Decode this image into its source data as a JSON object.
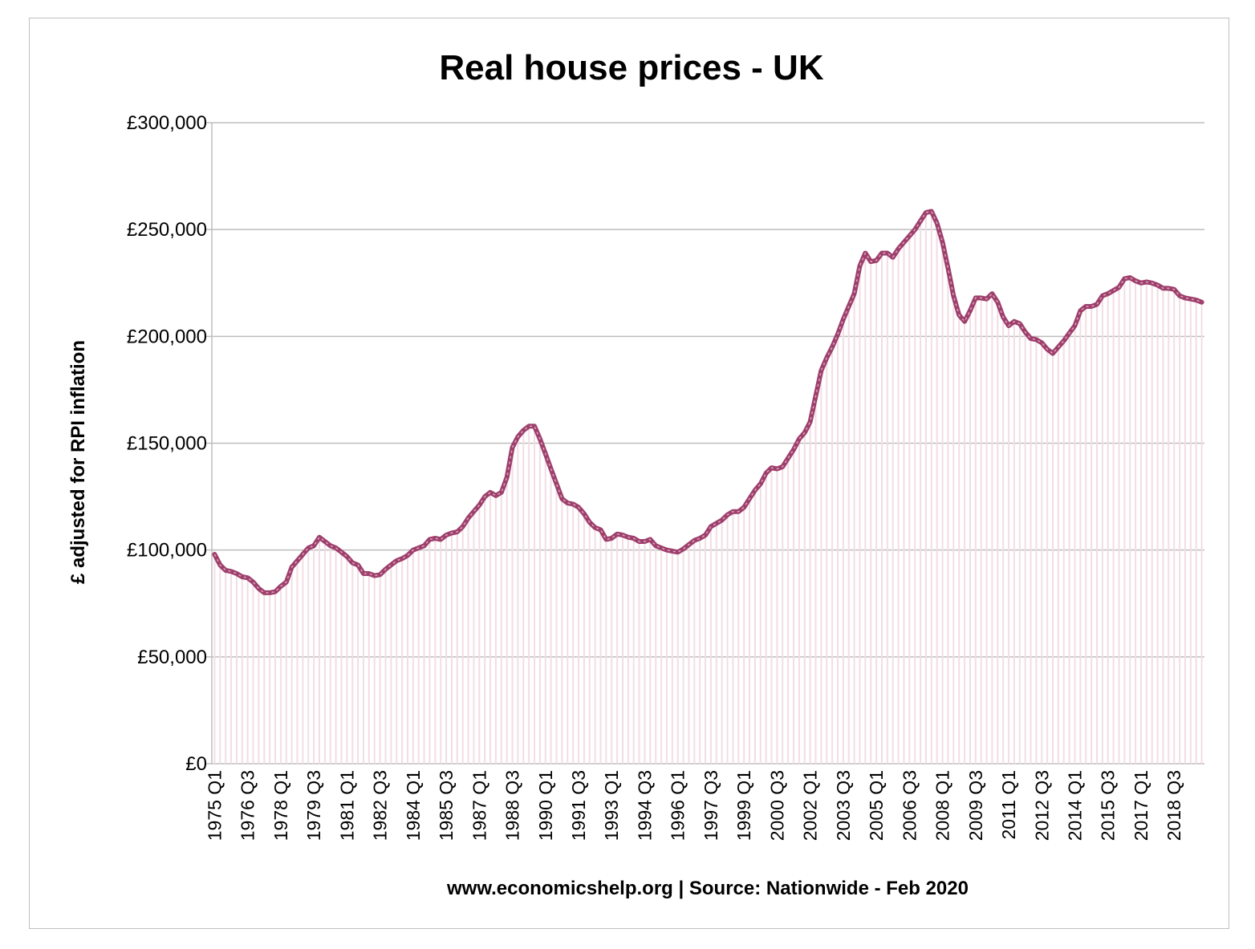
{
  "chart_data": {
    "type": "line",
    "title": "Real house prices - UK",
    "xlabel": "www.economicshelp.org | Source: Nationwide - Feb 2020",
    "ylabel": "£ adjusted for RPI inflation",
    "ylim": [
      0,
      300000
    ],
    "yticks": [
      "£0",
      "£50,000",
      "£100,000",
      "£150,000",
      "£200,000",
      "£250,000",
      "£300,000"
    ],
    "x_range": [
      "1975 Q1",
      "2019 Q4"
    ],
    "xtick_labels": [
      "1975 Q1",
      "1976 Q3",
      "1978 Q1",
      "1979 Q3",
      "1981 Q1",
      "1982 Q3",
      "1984 Q1",
      "1985 Q3",
      "1987 Q1",
      "1988 Q3",
      "1990 Q1",
      "1991 Q3",
      "1993 Q1",
      "1994 Q3",
      "1996 Q1",
      "1997 Q3",
      "1999 Q1",
      "2000 Q3",
      "2002 Q1",
      "2003 Q3",
      "2005 Q1",
      "2006 Q3",
      "2008 Q1",
      "2009 Q3",
      "2011 Q1",
      "2012 Q3",
      "2014 Q1",
      "2015 Q3",
      "2017 Q1",
      "2018 Q3"
    ],
    "grid": true,
    "legend": "none",
    "colors": {
      "line": "#9e3f6c",
      "fill": "#f3dde4",
      "grid": "#bdbdbd"
    },
    "series": [
      {
        "points": [
          [
            "1975 Q1",
            98000
          ],
          [
            "1975 Q2",
            93000
          ],
          [
            "1975 Q3",
            90500
          ],
          [
            "1975 Q4",
            90000
          ],
          [
            "1976 Q1",
            89000
          ],
          [
            "1976 Q2",
            87500
          ],
          [
            "1976 Q3",
            87000
          ],
          [
            "1976 Q4",
            85000
          ],
          [
            "1977 Q1",
            82000
          ],
          [
            "1977 Q2",
            80000
          ],
          [
            "1977 Q3",
            80000
          ],
          [
            "1977 Q4",
            80500
          ],
          [
            "1978 Q1",
            83000
          ],
          [
            "1978 Q2",
            85000
          ],
          [
            "1978 Q3",
            92000
          ],
          [
            "1978 Q4",
            95000
          ],
          [
            "1979 Q1",
            98000
          ],
          [
            "1979 Q2",
            101000
          ],
          [
            "1979 Q3",
            102000
          ],
          [
            "1979 Q4",
            106000
          ],
          [
            "1980 Q1",
            104000
          ],
          [
            "1980 Q2",
            102000
          ],
          [
            "1980 Q3",
            101000
          ],
          [
            "1980 Q4",
            99000
          ],
          [
            "1981 Q1",
            97000
          ],
          [
            "1981 Q2",
            94000
          ],
          [
            "1981 Q3",
            93000
          ],
          [
            "1981 Q4",
            89000
          ],
          [
            "1982 Q1",
            89000
          ],
          [
            "1982 Q2",
            88000
          ],
          [
            "1982 Q3",
            88500
          ],
          [
            "1982 Q4",
            91000
          ],
          [
            "1983 Q1",
            93000
          ],
          [
            "1983 Q2",
            95000
          ],
          [
            "1983 Q3",
            96000
          ],
          [
            "1983 Q4",
            97500
          ],
          [
            "1984 Q1",
            100000
          ],
          [
            "1984 Q2",
            101000
          ],
          [
            "1984 Q3",
            102000
          ],
          [
            "1984 Q4",
            105000
          ],
          [
            "1985 Q1",
            105500
          ],
          [
            "1985 Q2",
            105000
          ],
          [
            "1985 Q3",
            107000
          ],
          [
            "1985 Q4",
            108000
          ],
          [
            "1986 Q1",
            108500
          ],
          [
            "1986 Q2",
            111000
          ],
          [
            "1986 Q3",
            115000
          ],
          [
            "1986 Q4",
            118000
          ],
          [
            "1987 Q1",
            121000
          ],
          [
            "1987 Q2",
            125000
          ],
          [
            "1987 Q3",
            127000
          ],
          [
            "1987 Q4",
            125500
          ],
          [
            "1988 Q1",
            127000
          ],
          [
            "1988 Q2",
            134000
          ],
          [
            "1988 Q3",
            148000
          ],
          [
            "1988 Q4",
            153000
          ],
          [
            "1989 Q1",
            156000
          ],
          [
            "1989 Q2",
            158000
          ],
          [
            "1989 Q3",
            158000
          ],
          [
            "1989 Q4",
            152000
          ],
          [
            "1990 Q1",
            145000
          ],
          [
            "1990 Q2",
            138000
          ],
          [
            "1990 Q3",
            131000
          ],
          [
            "1990 Q4",
            124000
          ],
          [
            "1991 Q1",
            122000
          ],
          [
            "1991 Q2",
            121500
          ],
          [
            "1991 Q3",
            120000
          ],
          [
            "1991 Q4",
            117000
          ],
          [
            "1992 Q1",
            113000
          ],
          [
            "1992 Q2",
            110500
          ],
          [
            "1992 Q3",
            109500
          ],
          [
            "1992 Q4",
            105000
          ],
          [
            "1993 Q1",
            105500
          ],
          [
            "1993 Q2",
            107500
          ],
          [
            "1993 Q3",
            107000
          ],
          [
            "1993 Q4",
            106000
          ],
          [
            "1994 Q1",
            105500
          ],
          [
            "1994 Q2",
            104000
          ],
          [
            "1994 Q3",
            104000
          ],
          [
            "1994 Q4",
            105000
          ],
          [
            "1995 Q1",
            102000
          ],
          [
            "1995 Q2",
            101000
          ],
          [
            "1995 Q3",
            100000
          ],
          [
            "1995 Q4",
            99500
          ],
          [
            "1996 Q1",
            99000
          ],
          [
            "1996 Q2",
            100500
          ],
          [
            "1996 Q3",
            102500
          ],
          [
            "1996 Q4",
            104500
          ],
          [
            "1997 Q1",
            105500
          ],
          [
            "1997 Q2",
            107000
          ],
          [
            "1997 Q3",
            111000
          ],
          [
            "1997 Q4",
            112500
          ],
          [
            "1998 Q1",
            114000
          ],
          [
            "1998 Q2",
            116500
          ],
          [
            "1998 Q3",
            118000
          ],
          [
            "1998 Q4",
            118000
          ],
          [
            "1999 Q1",
            120000
          ],
          [
            "1999 Q2",
            124000
          ],
          [
            "1999 Q3",
            128000
          ],
          [
            "1999 Q4",
            131000
          ],
          [
            "2000 Q1",
            136000
          ],
          [
            "2000 Q2",
            138500
          ],
          [
            "2000 Q3",
            138000
          ],
          [
            "2000 Q4",
            139000
          ],
          [
            "2001 Q1",
            143000
          ],
          [
            "2001 Q2",
            147000
          ],
          [
            "2001 Q3",
            152000
          ],
          [
            "2001 Q4",
            155000
          ],
          [
            "2002 Q1",
            160000
          ],
          [
            "2002 Q2",
            172000
          ],
          [
            "2002 Q3",
            184000
          ],
          [
            "2002 Q4",
            190000
          ],
          [
            "2003 Q1",
            195000
          ],
          [
            "2003 Q2",
            201000
          ],
          [
            "2003 Q3",
            208000
          ],
          [
            "2003 Q4",
            214000
          ],
          [
            "2004 Q1",
            220000
          ],
          [
            "2004 Q2",
            233000
          ],
          [
            "2004 Q3",
            239000
          ],
          [
            "2004 Q4",
            235000
          ],
          [
            "2005 Q1",
            235500
          ],
          [
            "2005 Q2",
            239000
          ],
          [
            "2005 Q3",
            239000
          ],
          [
            "2005 Q4",
            237000
          ],
          [
            "2006 Q1",
            241000
          ],
          [
            "2006 Q2",
            244000
          ],
          [
            "2006 Q3",
            247000
          ],
          [
            "2006 Q4",
            250000
          ],
          [
            "2007 Q1",
            254000
          ],
          [
            "2007 Q2",
            258000
          ],
          [
            "2007 Q3",
            258500
          ],
          [
            "2007 Q4",
            253000
          ],
          [
            "2008 Q1",
            244000
          ],
          [
            "2008 Q2",
            232000
          ],
          [
            "2008 Q3",
            219000
          ],
          [
            "2008 Q4",
            210000
          ],
          [
            "2009 Q1",
            207000
          ],
          [
            "2009 Q2",
            212000
          ],
          [
            "2009 Q3",
            218000
          ],
          [
            "2009 Q4",
            218000
          ],
          [
            "2010 Q1",
            217500
          ],
          [
            "2010 Q2",
            220000
          ],
          [
            "2010 Q3",
            216000
          ],
          [
            "2010 Q4",
            209000
          ],
          [
            "2011 Q1",
            205000
          ],
          [
            "2011 Q2",
            207000
          ],
          [
            "2011 Q3",
            206000
          ],
          [
            "2011 Q4",
            202000
          ],
          [
            "2012 Q1",
            199000
          ],
          [
            "2012 Q2",
            198500
          ],
          [
            "2012 Q3",
            197000
          ],
          [
            "2012 Q4",
            194000
          ],
          [
            "2013 Q1",
            192000
          ],
          [
            "2013 Q2",
            195000
          ],
          [
            "2013 Q3",
            198000
          ],
          [
            "2013 Q4",
            201500
          ],
          [
            "2014 Q1",
            205000
          ],
          [
            "2014 Q2",
            212000
          ],
          [
            "2014 Q3",
            214000
          ],
          [
            "2014 Q4",
            214000
          ],
          [
            "2015 Q1",
            215000
          ],
          [
            "2015 Q2",
            219000
          ],
          [
            "2015 Q3",
            220000
          ],
          [
            "2015 Q4",
            221500
          ],
          [
            "2016 Q1",
            223000
          ],
          [
            "2016 Q2",
            227000
          ],
          [
            "2016 Q3",
            227500
          ],
          [
            "2016 Q4",
            226000
          ],
          [
            "2017 Q1",
            225000
          ],
          [
            "2017 Q2",
            225500
          ],
          [
            "2017 Q3",
            225000
          ],
          [
            "2017 Q4",
            224000
          ],
          [
            "2018 Q1",
            222500
          ],
          [
            "2018 Q2",
            222500
          ],
          [
            "2018 Q3",
            222000
          ],
          [
            "2018 Q4",
            219000
          ],
          [
            "2019 Q1",
            218000
          ],
          [
            "2019 Q2",
            217500
          ],
          [
            "2019 Q3",
            217000
          ],
          [
            "2019 Q4",
            216000
          ]
        ]
      }
    ]
  }
}
